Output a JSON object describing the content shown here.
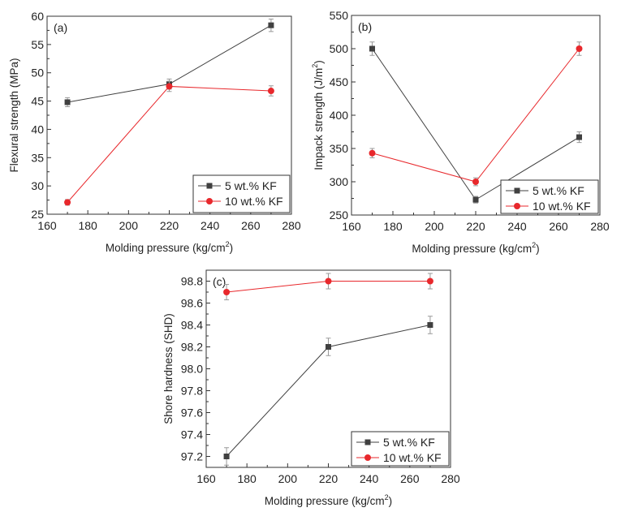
{
  "colors": {
    "series_5": "#404040",
    "series_10": "#e8282c",
    "error": "#999999"
  },
  "chart_data": [
    {
      "type": "line",
      "panel_label": "(a)",
      "xlabel": "Molding pressure (kg/cm",
      "xlabel_sup": "2",
      "xlabel_end": ")",
      "ylabel": "Flexural strength (MPa)",
      "xlim": [
        160,
        280
      ],
      "ylim": [
        25,
        60
      ],
      "xticks": [
        160,
        180,
        200,
        220,
        240,
        260,
        280
      ],
      "yticks": [
        25,
        30,
        35,
        40,
        45,
        50,
        55,
        60
      ],
      "ytick_labels": [
        "25",
        "30",
        "35",
        "40",
        "45",
        "50",
        "55",
        "60"
      ],
      "x": [
        170,
        220,
        270
      ],
      "series": [
        {
          "name": "5 wt.% KF",
          "marker": "square",
          "values": [
            44.8,
            48.0,
            58.4
          ],
          "errors": [
            0.8,
            0.9,
            1.1
          ]
        },
        {
          "name": "10 wt.% KF",
          "marker": "circle",
          "values": [
            27.1,
            47.6,
            46.8
          ],
          "errors": [
            0.5,
            0.9,
            0.9
          ]
        }
      ],
      "legend": "bottom-right"
    },
    {
      "type": "line",
      "panel_label": "(b)",
      "xlabel": "Molding pressure (kg/cm",
      "xlabel_sup": "2",
      "xlabel_end": ")",
      "ylabel": "Impack strength (J/m",
      "ylabel_sup": "2",
      "ylabel_end": ")",
      "xlim": [
        160,
        280
      ],
      "ylim": [
        250,
        550
      ],
      "xticks": [
        160,
        180,
        200,
        220,
        240,
        260,
        280
      ],
      "yticks": [
        250,
        300,
        350,
        400,
        450,
        500,
        550
      ],
      "ytick_labels": [
        "250",
        "300",
        "350",
        "400",
        "450",
        "500",
        "550"
      ],
      "x": [
        170,
        220,
        270
      ],
      "series": [
        {
          "name": "5 wt.% KF",
          "marker": "square",
          "values": [
            500,
            273,
            367
          ],
          "errors": [
            10,
            5,
            8
          ]
        },
        {
          "name": "10 wt.% KF",
          "marker": "circle",
          "values": [
            343,
            300,
            500
          ],
          "errors": [
            7,
            6,
            10
          ]
        }
      ],
      "legend": "bottom-right"
    },
    {
      "type": "line",
      "panel_label": "(c)",
      "xlabel": "Molding pressure (kg/cm",
      "xlabel_sup": "2",
      "xlabel_end": ")",
      "ylabel": "Shore hardness (SHD)",
      "xlim": [
        160,
        280
      ],
      "ylim": [
        97.1,
        98.9
      ],
      "xticks": [
        160,
        180,
        200,
        220,
        240,
        260,
        280
      ],
      "yticks": [
        97.2,
        97.4,
        97.6,
        97.8,
        98.0,
        98.2,
        98.4,
        98.6,
        98.8
      ],
      "ytick_labels": [
        "97.2",
        "97.4",
        "97.6",
        "97.8",
        "98.0",
        "98.2",
        "98.4",
        "98.6",
        "98.8"
      ],
      "x": [
        170,
        220,
        270
      ],
      "series": [
        {
          "name": "5 wt.% KF",
          "marker": "square",
          "values": [
            97.2,
            98.2,
            98.4
          ],
          "errors": [
            0.08,
            0.08,
            0.08
          ]
        },
        {
          "name": "10 wt.% KF",
          "marker": "circle",
          "values": [
            98.7,
            98.8,
            98.8
          ],
          "errors": [
            0.07,
            0.07,
            0.07
          ]
        }
      ],
      "legend": "bottom-right"
    }
  ]
}
